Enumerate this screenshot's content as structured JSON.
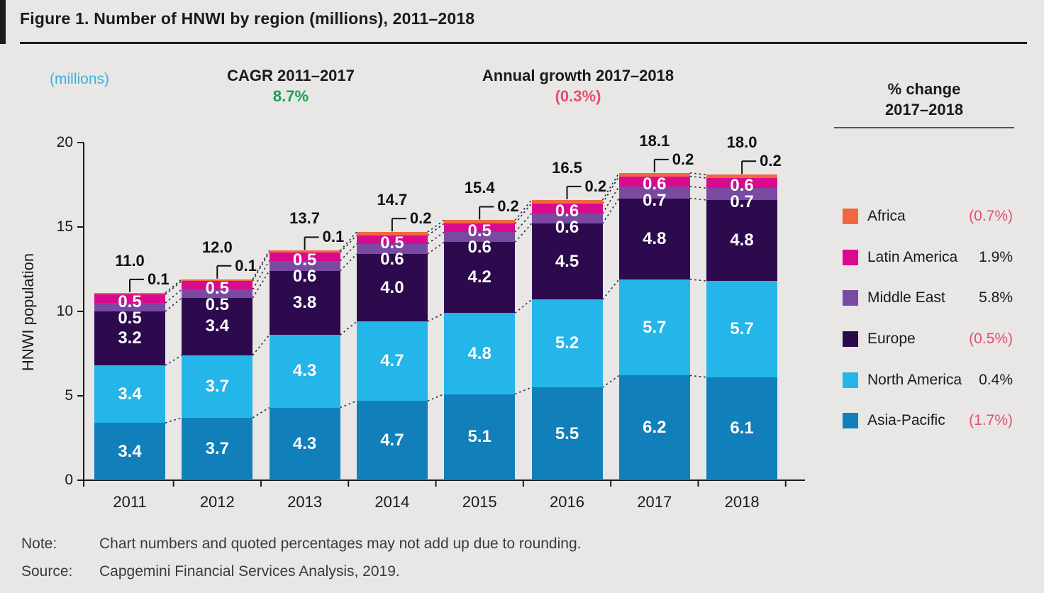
{
  "figure": {
    "title": "Figure 1. Number of HNWI by region (millions), 2011–2018",
    "y_axis_unit_note": "(millions)",
    "cagr_label": "CAGR 2011–2017",
    "cagr_value": "8.7%",
    "annual_growth_label": "Annual growth 2017–2018",
    "annual_growth_value": "(0.3%)",
    "note_label": "Note:",
    "note_text": "Chart numbers and quoted percentages may not add up due to rounding.",
    "source_label": "Source:",
    "source_text": "Capgemini Financial Services Analysis, 2019."
  },
  "legend": {
    "header_line1": "% change",
    "header_line2": "2017–2018",
    "items": [
      {
        "label": "Africa",
        "change": "(0.7%)",
        "negative": true,
        "color": "#f0683f"
      },
      {
        "label": "Latin America",
        "change": "1.9%",
        "negative": false,
        "color": "#d90a8e"
      },
      {
        "label": "Middle East",
        "change": "5.8%",
        "negative": false,
        "color": "#7a4aa2"
      },
      {
        "label": "Europe",
        "change": "(0.5%)",
        "negative": true,
        "color": "#2d0a4e"
      },
      {
        "label": "North America",
        "change": "0.4%",
        "negative": false,
        "color": "#24b6e8"
      },
      {
        "label": "Asia-Pacific",
        "change": "(1.7%)",
        "negative": true,
        "color": "#1180ba"
      }
    ]
  },
  "chart_data": {
    "type": "bar",
    "stacked": true,
    "title": "Number of HNWI by region (millions), 2011–2018",
    "xlabel": "",
    "ylabel": "HNWI population",
    "ylim": [
      0,
      20
    ],
    "yticks": [
      0,
      5,
      10,
      15,
      20
    ],
    "grid": false,
    "legend_position": "right",
    "categories": [
      "2011",
      "2012",
      "2013",
      "2014",
      "2015",
      "2016",
      "2017",
      "2018"
    ],
    "totals": [
      11.0,
      12.0,
      13.7,
      14.7,
      15.4,
      16.5,
      18.1,
      18.0
    ],
    "series": [
      {
        "name": "Asia-Pacific",
        "color": "#1180ba",
        "values": [
          3.4,
          3.7,
          4.3,
          4.7,
          5.1,
          5.5,
          6.2,
          6.1
        ]
      },
      {
        "name": "North America",
        "color": "#24b6e8",
        "values": [
          3.4,
          3.7,
          4.3,
          4.7,
          4.8,
          5.2,
          5.7,
          5.7
        ]
      },
      {
        "name": "Europe",
        "color": "#2d0a4e",
        "values": [
          3.2,
          3.4,
          3.8,
          4.0,
          4.2,
          4.5,
          4.8,
          4.8
        ]
      },
      {
        "name": "Middle East",
        "color": "#7a4aa2",
        "values": [
          0.5,
          0.5,
          0.6,
          0.6,
          0.6,
          0.6,
          0.7,
          0.7
        ]
      },
      {
        "name": "Latin America",
        "color": "#d90a8e",
        "values": [
          0.5,
          0.5,
          0.5,
          0.5,
          0.5,
          0.6,
          0.6,
          0.6
        ]
      },
      {
        "name": "Africa",
        "color": "#f0683f",
        "values": [
          0.1,
          0.1,
          0.1,
          0.2,
          0.2,
          0.2,
          0.2,
          0.2
        ]
      }
    ],
    "annotations": {
      "africa_values_shown_as_callouts": true
    }
  },
  "colors": {
    "background": "#e8e7e5",
    "accent_dark": "#1c1c1c",
    "positive_green": "#10a34f",
    "negative_pink": "#e64c70",
    "unit_cyan": "#3fb1da",
    "connector": "#232738"
  }
}
